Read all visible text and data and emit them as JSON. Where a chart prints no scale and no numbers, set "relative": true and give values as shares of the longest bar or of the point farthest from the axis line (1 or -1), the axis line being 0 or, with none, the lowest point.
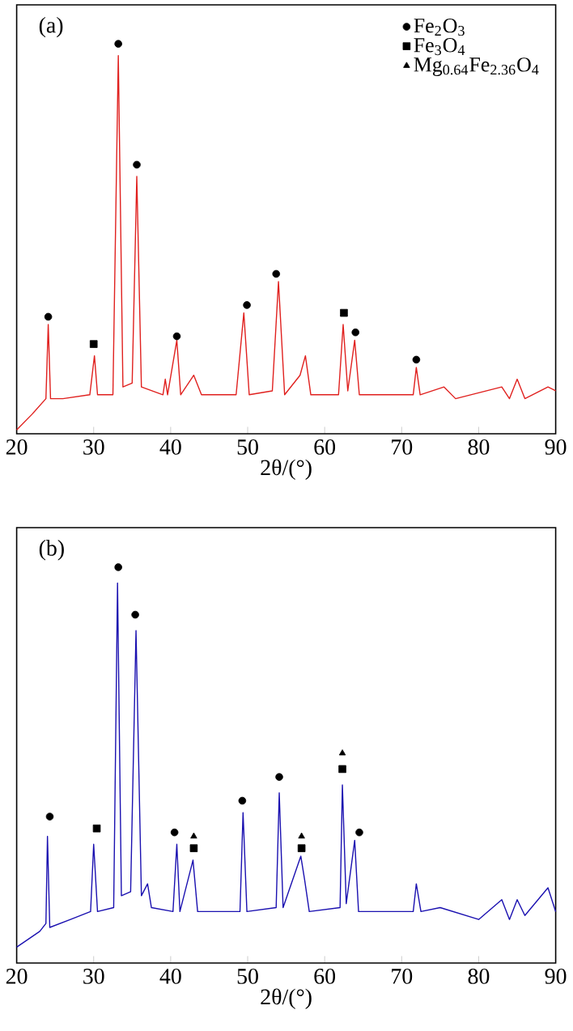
{
  "chart_data": [
    {
      "type": "line",
      "relative": true,
      "xlabel": "2θ/(°)",
      "xlim": [
        20,
        90
      ],
      "xticks": [
        20,
        30,
        40,
        50,
        60,
        70,
        80,
        90
      ],
      "legend": "top right",
      "annotations": [
        "(a)"
      ],
      "series": [
        {
          "color": "#e0201e",
          "x": [
            20,
            22,
            23.8,
            24.1,
            24.4,
            26,
            29.5,
            30.1,
            30.5,
            32.5,
            33.2,
            33.8,
            35.0,
            35.6,
            36.2,
            39,
            39.3,
            39.6,
            40.8,
            41.3,
            43.0,
            44,
            48.5,
            49.5,
            50.2,
            53.2,
            54.0,
            54.8,
            56.8,
            57.5,
            58.2,
            61.8,
            62.4,
            63.0,
            63.9,
            64.5,
            71.5,
            71.9,
            72.4,
            75.5,
            77,
            83,
            84,
            85,
            86,
            89,
            90
          ],
          "values": [
            0.01,
            0.05,
            0.09,
            0.28,
            0.09,
            0.09,
            0.1,
            0.2,
            0.1,
            0.1,
            0.97,
            0.12,
            0.13,
            0.66,
            0.12,
            0.1,
            0.14,
            0.1,
            0.24,
            0.1,
            0.15,
            0.1,
            0.1,
            0.31,
            0.1,
            0.11,
            0.39,
            0.1,
            0.15,
            0.2,
            0.1,
            0.1,
            0.28,
            0.11,
            0.24,
            0.1,
            0.1,
            0.17,
            0.1,
            0.12,
            0.09,
            0.12,
            0.09,
            0.14,
            0.09,
            0.12,
            0.11
          ]
        },
        {
          "type": "scatter",
          "name": "Fe$_{2}$O$_{3}$",
          "marker": "circle",
          "color": "#000000",
          "x": [
            24.1,
            33.2,
            35.6,
            40.8,
            49.9,
            53.7,
            64.0,
            71.9
          ],
          "values": [
            0.3,
            1.0,
            0.69,
            0.25,
            0.33,
            0.41,
            0.26,
            0.19
          ]
        },
        {
          "type": "scatter",
          "name": "Fe$_{3}$O$_{4}$",
          "marker": "square",
          "color": "#000000",
          "x": [
            30.0,
            62.5
          ],
          "values": [
            0.23,
            0.31
          ]
        },
        {
          "type": "scatter",
          "name": "Mg$_{0.64}$Fe$_{2.36}$O$_{4}$",
          "marker": "triangle",
          "color": "#000000"
        }
      ]
    },
    {
      "type": "line",
      "relative": true,
      "xlabel": "2θ/(°)",
      "xlim": [
        20,
        90
      ],
      "xticks": [
        20,
        30,
        40,
        50,
        60,
        70,
        80,
        90
      ],
      "annotations": [
        "(b)"
      ],
      "series": [
        {
          "color": "#1a10b0",
          "x": [
            20,
            23,
            23.8,
            24.0,
            24.3,
            27,
            29.6,
            30.0,
            30.5,
            32.6,
            33.1,
            33.6,
            34.8,
            35.5,
            36.2,
            37.0,
            37.5,
            40.3,
            40.8,
            41.2,
            42.9,
            43.5,
            49.0,
            49.4,
            49.9,
            53.7,
            54.1,
            54.6,
            56.9,
            57.4,
            58,
            62.0,
            62.3,
            62.8,
            63.9,
            64.4,
            71.5,
            71.9,
            72.5,
            75,
            80,
            83,
            84,
            85,
            86,
            89,
            90
          ],
          "values": [
            0.04,
            0.08,
            0.1,
            0.32,
            0.09,
            0.11,
            0.13,
            0.3,
            0.13,
            0.14,
            0.96,
            0.17,
            0.18,
            0.84,
            0.17,
            0.2,
            0.14,
            0.13,
            0.3,
            0.13,
            0.26,
            0.13,
            0.13,
            0.38,
            0.13,
            0.14,
            0.43,
            0.14,
            0.27,
            0.21,
            0.13,
            0.14,
            0.45,
            0.15,
            0.31,
            0.13,
            0.13,
            0.2,
            0.13,
            0.14,
            0.11,
            0.16,
            0.11,
            0.16,
            0.12,
            0.19,
            0.13
          ]
        },
        {
          "type": "scatter",
          "marker": "circle",
          "color": "#000000",
          "x": [
            24.3,
            33.2,
            35.4,
            40.5,
            49.3,
            54.1,
            64.5
          ],
          "values": [
            0.37,
            1.0,
            0.88,
            0.33,
            0.41,
            0.47,
            0.33
          ]
        },
        {
          "type": "scatter",
          "marker": "square",
          "color": "#000000",
          "x": [
            30.4,
            43.0,
            57.0,
            62.3
          ],
          "values": [
            0.34,
            0.29,
            0.29,
            0.49
          ]
        },
        {
          "type": "scatter",
          "marker": "triangle",
          "color": "#000000",
          "x": [
            43.0,
            57.0,
            62.3
          ],
          "values": [
            0.32,
            0.32,
            0.53
          ]
        }
      ]
    }
  ]
}
